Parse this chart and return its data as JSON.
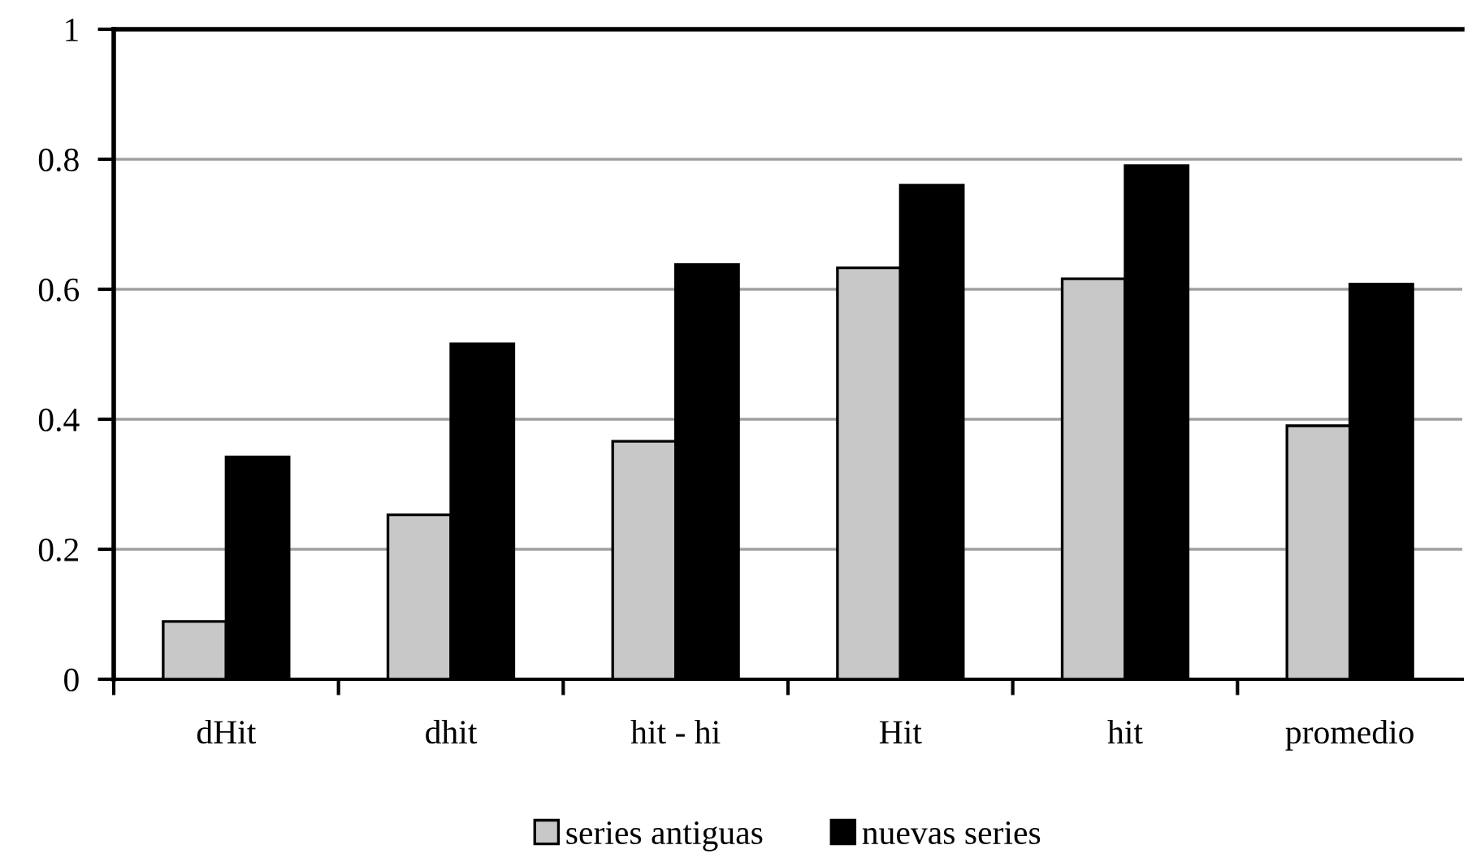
{
  "chart_data": {
    "type": "bar",
    "categories": [
      "dHit",
      "dhit",
      "hit - hi",
      "Hit",
      "hit",
      "promedio"
    ],
    "series": [
      {
        "name": "series antiguas",
        "color": "#c8c8c8",
        "values": [
          0.089,
          0.253,
          0.366,
          0.633,
          0.616,
          0.39
        ]
      },
      {
        "name": "nuevas series",
        "color": "#000000",
        "values": [
          0.342,
          0.516,
          0.638,
          0.76,
          0.79,
          0.608
        ]
      }
    ],
    "ylim": [
      0,
      1
    ],
    "yticks": [
      0,
      0.2,
      0.4,
      0.6,
      0.8,
      1
    ],
    "grid": "y",
    "legend": "bottom"
  }
}
